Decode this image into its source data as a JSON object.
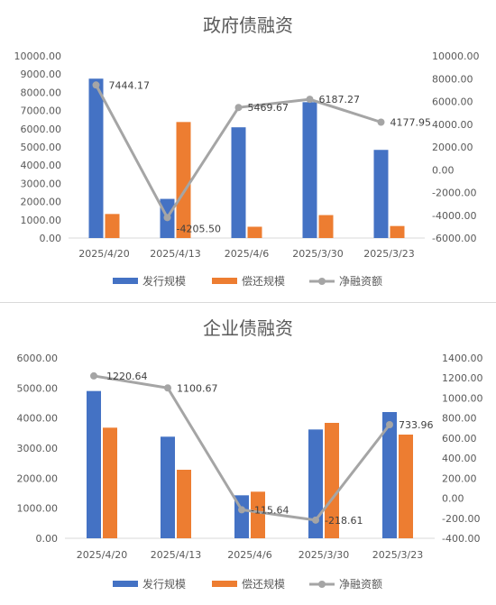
{
  "chart_data": [
    {
      "type": "bar",
      "title": "政府债融资",
      "categories": [
        "2025/4/20",
        "2025/4/13",
        "2025/4/6",
        "2025/3/30",
        "2025/3/23"
      ],
      "series": [
        {
          "name": "发行规模",
          "kind": "bar",
          "axis": "left",
          "values": [
            8750,
            2150,
            6080,
            7460,
            4840
          ]
        },
        {
          "name": "偿还规模",
          "kind": "bar",
          "axis": "left",
          "values": [
            1320,
            6370,
            620,
            1260,
            660
          ]
        },
        {
          "name": "净融资额",
          "kind": "line",
          "axis": "right",
          "values": [
            7444.17,
            -4205.5,
            5469.67,
            6187.27,
            4177.95
          ]
        }
      ],
      "data_labels": [
        "7444.17",
        "-4205.50",
        "5469.67",
        "6187.27",
        "4177.95"
      ],
      "ylim_left": [
        0,
        10000
      ],
      "yticks_left": [
        "0.00",
        "1000.00",
        "2000.00",
        "3000.00",
        "4000.00",
        "5000.00",
        "6000.00",
        "7000.00",
        "8000.00",
        "9000.00",
        "10000.00"
      ],
      "ylim_right": [
        -6000,
        10000
      ],
      "yticks_right": [
        "-6000.00",
        "-4000.00",
        "-2000.00",
        "0.00",
        "2000.00",
        "4000.00",
        "6000.00",
        "8000.00",
        "10000.00"
      ],
      "legend": "bottom",
      "grid": false
    },
    {
      "type": "bar",
      "title": "企业债融资",
      "categories": [
        "2025/4/20",
        "2025/4/13",
        "2025/4/6",
        "2025/3/30",
        "2025/3/23"
      ],
      "series": [
        {
          "name": "发行规模",
          "kind": "bar",
          "axis": "left",
          "values": [
            4900,
            3380,
            1430,
            3620,
            4200
          ]
        },
        {
          "name": "偿还规模",
          "kind": "bar",
          "axis": "left",
          "values": [
            3680,
            2280,
            1550,
            3840,
            3450
          ]
        },
        {
          "name": "净融资额",
          "kind": "line",
          "axis": "right",
          "values": [
            1220.64,
            1100.67,
            -115.64,
            -218.61,
            733.96
          ]
        }
      ],
      "data_labels": [
        "1220.64",
        "1100.67",
        "-115.64",
        "-218.61",
        "733.96"
      ],
      "ylim_left": [
        0,
        6000
      ],
      "yticks_left": [
        "0.00",
        "1000.00",
        "2000.00",
        "3000.00",
        "4000.00",
        "5000.00",
        "6000.00"
      ],
      "ylim_right": [
        -400,
        1400
      ],
      "yticks_right": [
        "-400.00",
        "-200.00",
        "0.00",
        "200.00",
        "400.00",
        "600.00",
        "800.00",
        "1000.00",
        "1200.00",
        "1400.00"
      ],
      "legend": "bottom",
      "grid": false
    }
  ],
  "colors": {
    "issue": "#4472c4",
    "repay": "#ed7d31",
    "net": "#a5a5a5",
    "axis": "#d9d9d9",
    "text": "#595959"
  }
}
